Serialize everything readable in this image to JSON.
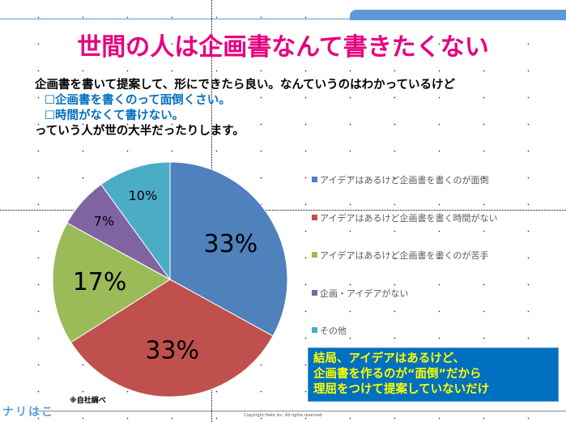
{
  "title": "世間の人は企画書なんて書きたくない",
  "lead": {
    "line1": "企画書を書いて提案して、形にできたら良い。なんていうのはわかっているけど",
    "bullet1": "☐企画書を書くのって面倒くさい。",
    "bullet2": "☐時間がなくて書けない。",
    "line4": "っていう人が世の大半だったりします。"
  },
  "chart_data": {
    "type": "pie",
    "categories": [
      "アイデアはあるけど企画書を書くのが面倒",
      "アイデアはあるけど企画書を書く時間がない",
      "アイデアはあるけど企画書を書くのが苦手",
      "企画・アイデアがない",
      "その他"
    ],
    "values": [
      33,
      33,
      17,
      7,
      10
    ],
    "labels": [
      "33%",
      "33%",
      "17%",
      "7%",
      "10%"
    ],
    "colors": [
      "#4f81bd",
      "#c0504d",
      "#9bbb59",
      "#8064a2",
      "#4bacc6"
    ],
    "legend_position": "right"
  },
  "callout": {
    "line1": "結局、アイデアはあるけど、",
    "line2": "企画書を作るのが“面倒”だから",
    "line3": "理屈をつけて提案していないだけ"
  },
  "note": "※自社調べ",
  "copyright": "Copyright Hako Inc. All rights reserved",
  "logo": "ナリはこ"
}
